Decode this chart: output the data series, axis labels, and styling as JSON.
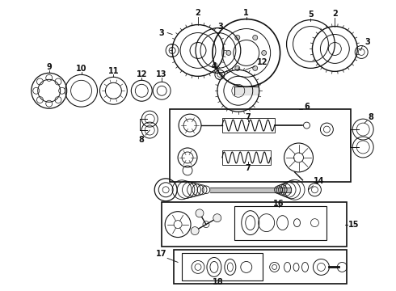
{
  "bg_color": "#ffffff",
  "line_color": "#111111",
  "fig_width": 4.9,
  "fig_height": 3.6,
  "dpi": 100
}
